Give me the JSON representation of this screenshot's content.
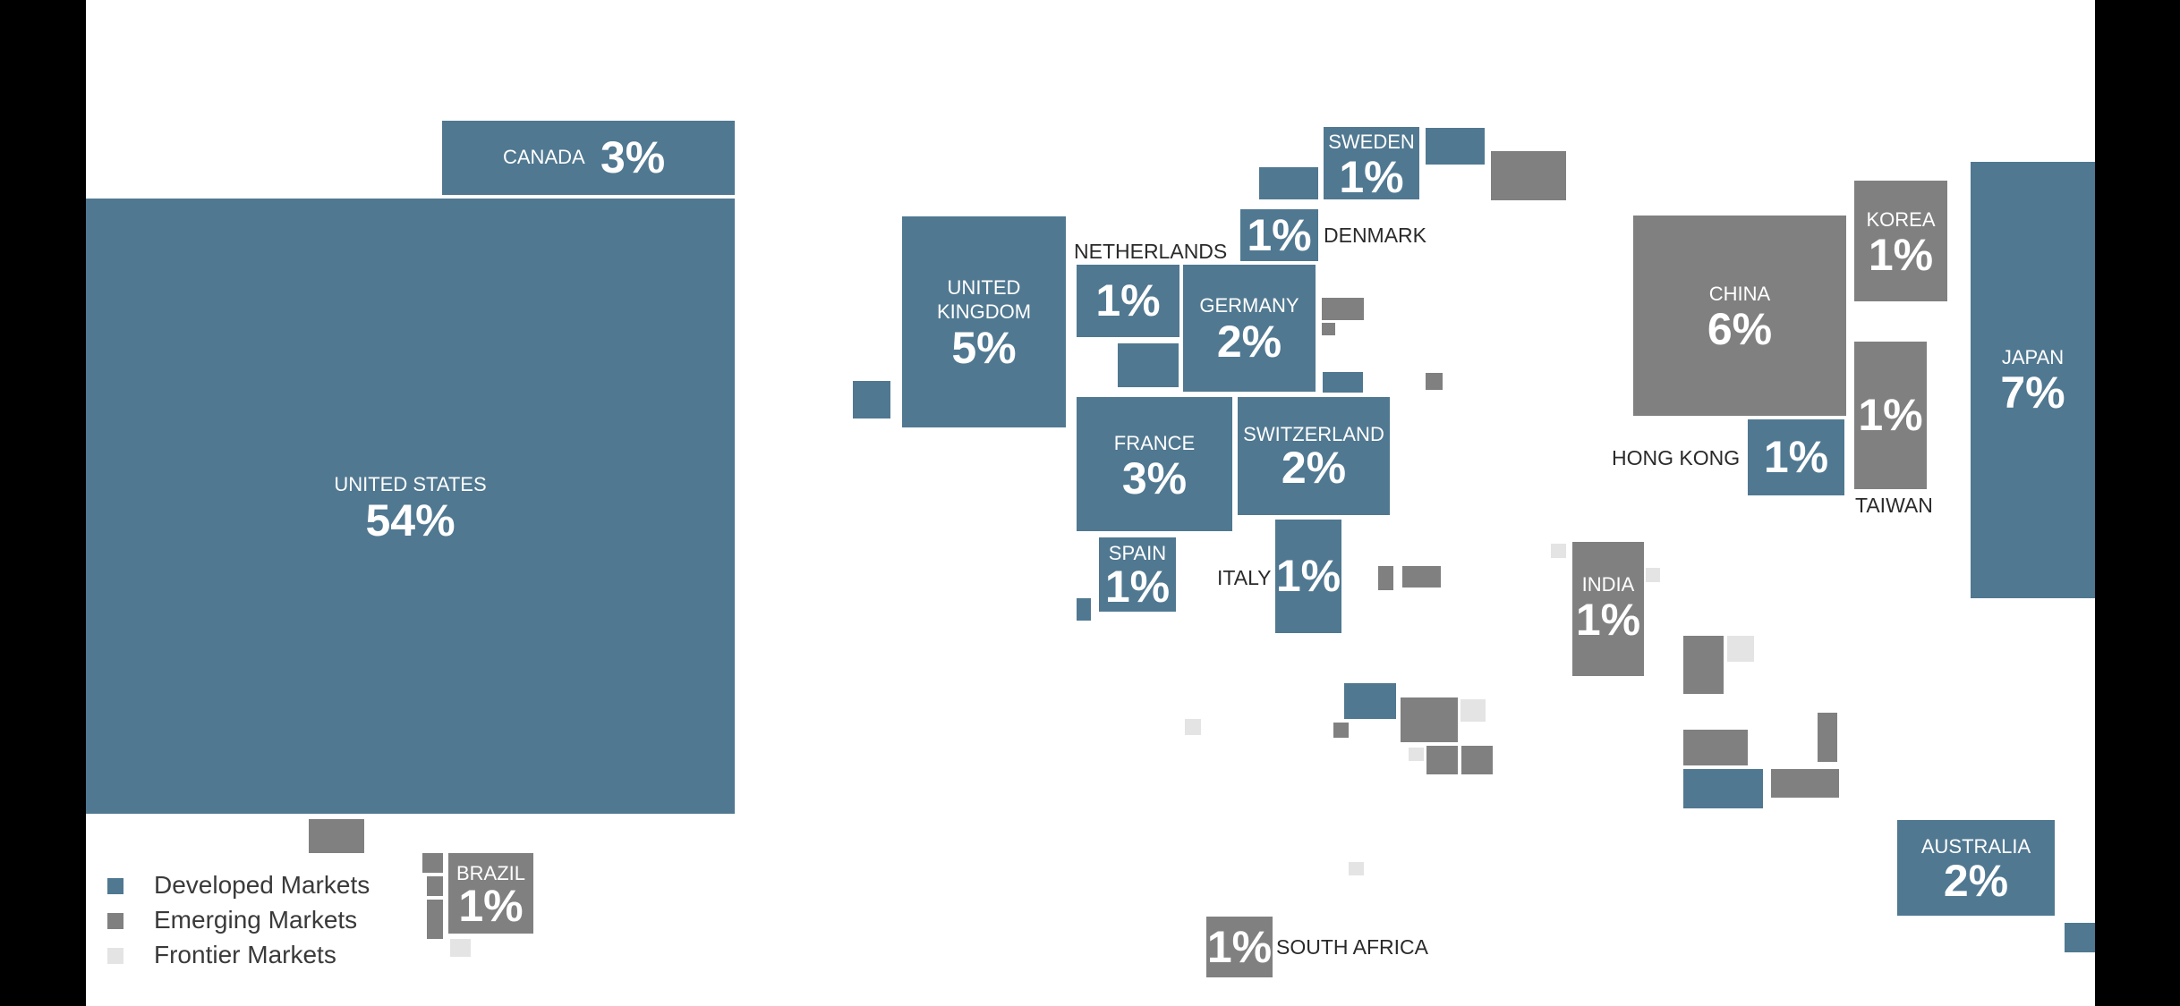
{
  "colors": {
    "developed": "#507891",
    "emerging": "#808080",
    "frontier": "#e4e4e4"
  },
  "legend": [
    {
      "label": "Developed Markets",
      "cls": "dev"
    },
    {
      "label": "Emerging Markets",
      "cls": "emg"
    },
    {
      "label": "Frontier Markets",
      "cls": "fro"
    }
  ],
  "chart_data": {
    "type": "treemap-cartogram",
    "title": "",
    "unit": "% share",
    "markets": [
      {
        "name": "UNITED STATES",
        "value_label": "54%",
        "value": 54,
        "group": "Developed Markets"
      },
      {
        "name": "CANADA",
        "value_label": "3%",
        "value": 3,
        "group": "Developed Markets"
      },
      {
        "name": "UNITED KINGDOM",
        "value_label": "5%",
        "value": 5,
        "group": "Developed Markets"
      },
      {
        "name": "NETHERLANDS",
        "value_label": "1%",
        "value": 1,
        "group": "Developed Markets"
      },
      {
        "name": "GERMANY",
        "value_label": "2%",
        "value": 2,
        "group": "Developed Markets"
      },
      {
        "name": "SWEDEN",
        "value_label": "1%",
        "value": 1,
        "group": "Developed Markets"
      },
      {
        "name": "DENMARK",
        "value_label": "1%",
        "value": 1,
        "group": "Developed Markets"
      },
      {
        "name": "FRANCE",
        "value_label": "3%",
        "value": 3,
        "group": "Developed Markets"
      },
      {
        "name": "SWITZERLAND",
        "value_label": "2%",
        "value": 2,
        "group": "Developed Markets"
      },
      {
        "name": "SPAIN",
        "value_label": "1%",
        "value": 1,
        "group": "Developed Markets"
      },
      {
        "name": "ITALY",
        "value_label": "1%",
        "value": 1,
        "group": "Developed Markets"
      },
      {
        "name": "CHINA",
        "value_label": "6%",
        "value": 6,
        "group": "Emerging Markets"
      },
      {
        "name": "KOREA",
        "value_label": "1%",
        "value": 1,
        "group": "Emerging Markets"
      },
      {
        "name": "TAIWAN",
        "value_label": "1%",
        "value": 1,
        "group": "Emerging Markets"
      },
      {
        "name": "HONG KONG",
        "value_label": "1%",
        "value": 1,
        "group": "Developed Markets"
      },
      {
        "name": "JAPAN",
        "value_label": "7%",
        "value": 7,
        "group": "Developed Markets"
      },
      {
        "name": "INDIA",
        "value_label": "1%",
        "value": 1,
        "group": "Emerging Markets"
      },
      {
        "name": "AUSTRALIA",
        "value_label": "2%",
        "value": 2,
        "group": "Developed Markets"
      },
      {
        "name": "BRAZIL",
        "value_label": "1%",
        "value": 1,
        "group": "Emerging Markets"
      },
      {
        "name": "SOUTH AFRICA",
        "value_label": "1%",
        "value": 1,
        "group": "Emerging Markets"
      }
    ]
  }
}
